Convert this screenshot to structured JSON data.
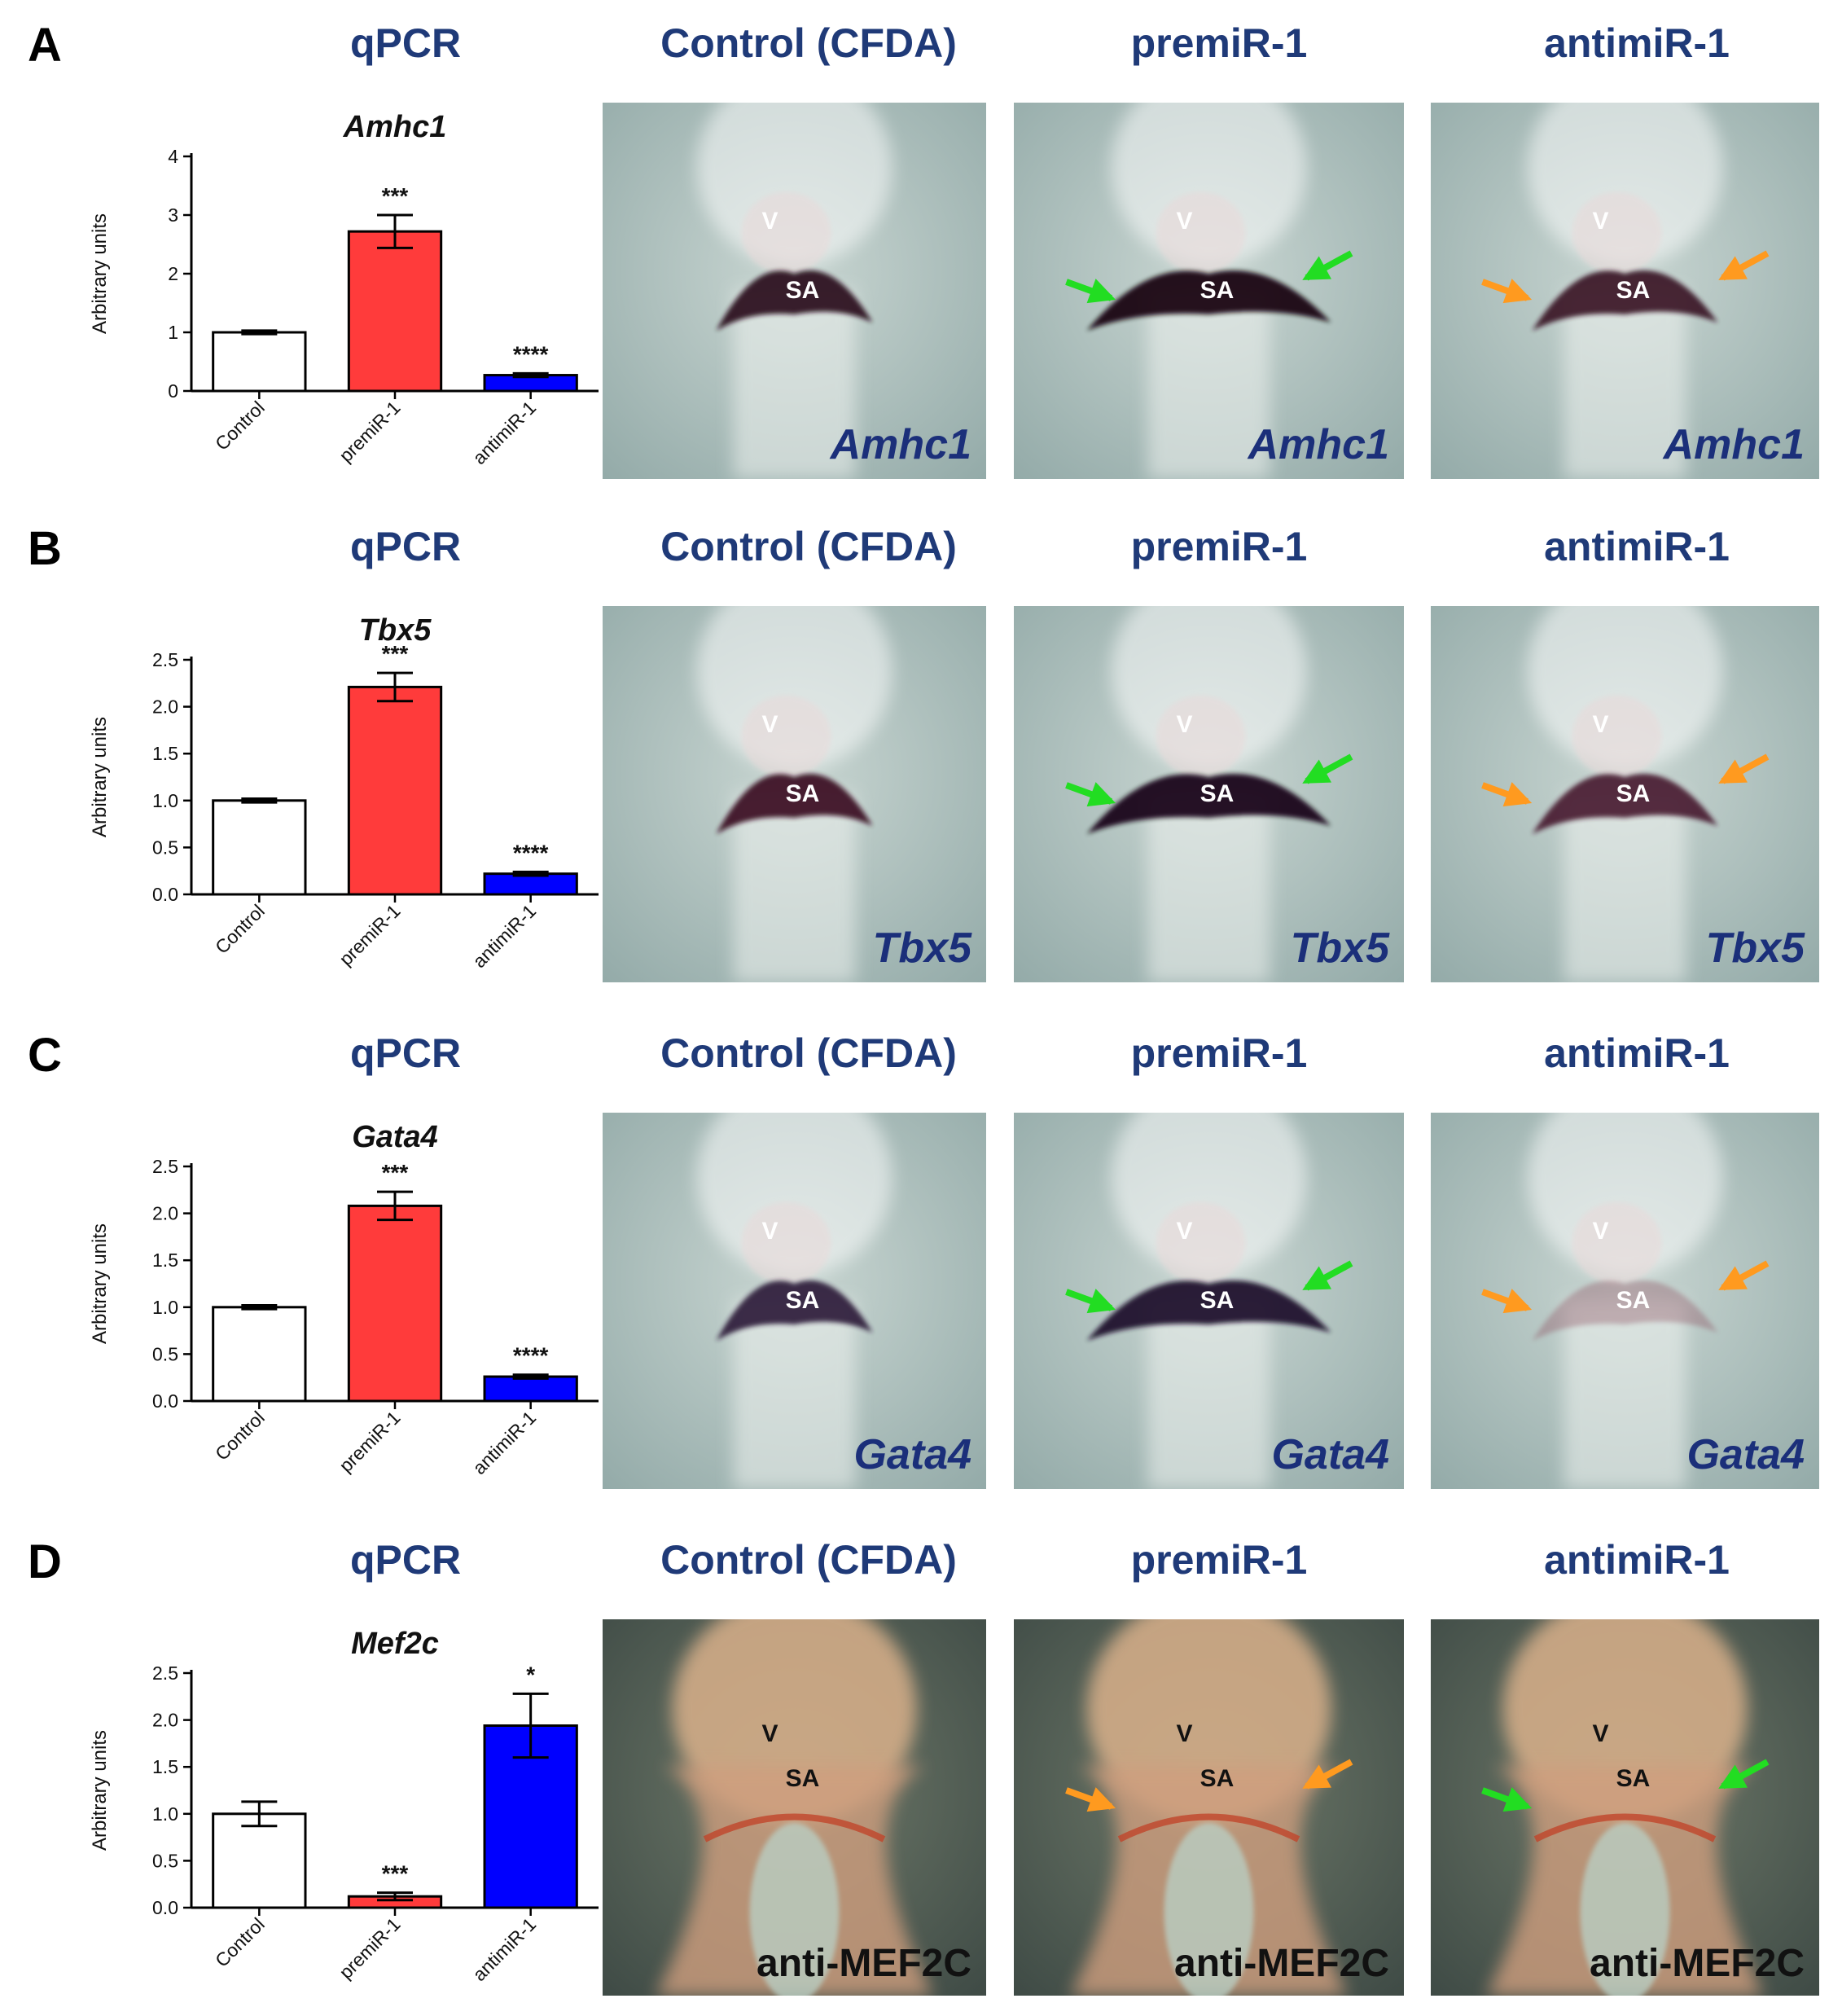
{
  "colors": {
    "title": "#1f3a78",
    "control_bar": "#ffffff",
    "premir_bar": "#ff3b3b",
    "antimir_bar": "#0000ff",
    "green_arrow": "#22dd22",
    "orange_arrow": "#ff9a1f"
  },
  "column_titles": {
    "qpcr": "qPCR",
    "control": "Control (CFDA)",
    "premir": "premiR-1",
    "antimir": "antimiR-1"
  },
  "panels": [
    {
      "letter": "A",
      "photo_labels": [
        "Amhc1",
        "Amhc1",
        "Amhc1"
      ],
      "tissue_labels": {
        "ventricle": "V",
        "sinoatrial": "SA"
      },
      "arrows": [
        "none",
        "green",
        "orange"
      ]
    },
    {
      "letter": "B",
      "photo_labels": [
        "Tbx5",
        "Tbx5",
        "Tbx5"
      ],
      "tissue_labels": {
        "ventricle": "V",
        "sinoatrial": "SA"
      },
      "arrows": [
        "none",
        "green",
        "orange"
      ]
    },
    {
      "letter": "C",
      "photo_labels": [
        "Gata4",
        "Gata4",
        "Gata4"
      ],
      "tissue_labels": {
        "ventricle": "V",
        "sinoatrial": "SA"
      },
      "arrows": [
        "none",
        "green",
        "orange"
      ]
    },
    {
      "letter": "D",
      "photo_labels": [
        "anti-MEF2C",
        "anti-MEF2C",
        "anti-MEF2C"
      ],
      "tissue_labels": {
        "ventricle": "V",
        "sinoatrial": "SA"
      },
      "arrows": [
        "none",
        "orange",
        "green"
      ]
    }
  ],
  "chart_data": [
    {
      "type": "bar",
      "title": "Amhc1",
      "ylabel": "Arbitrary units",
      "categories": [
        "Control",
        "premiR-1",
        "antimiR-1"
      ],
      "values": [
        1.0,
        2.72,
        0.27
      ],
      "errors": [
        0.03,
        0.28,
        0.03
      ],
      "significance": [
        "",
        "***",
        "****"
      ],
      "ylim": [
        0,
        4
      ],
      "yticks": [
        "0",
        "1",
        "2",
        "3",
        "4"
      ]
    },
    {
      "type": "bar",
      "title": "Tbx5",
      "ylabel": "Arbitrary units",
      "categories": [
        "Control",
        "premiR-1",
        "antimiR-1"
      ],
      "values": [
        1.0,
        2.21,
        0.22
      ],
      "errors": [
        0.02,
        0.15,
        0.02
      ],
      "significance": [
        "",
        "***",
        "****"
      ],
      "ylim": [
        0,
        2.5
      ],
      "yticks": [
        "0.0",
        "0.5",
        "1.0",
        "1.5",
        "2.0",
        "2.5"
      ]
    },
    {
      "type": "bar",
      "title": "Gata4",
      "ylabel": "Arbitrary units",
      "categories": [
        "Control",
        "premiR-1",
        "antimiR-1"
      ],
      "values": [
        1.0,
        2.08,
        0.26
      ],
      "errors": [
        0.02,
        0.15,
        0.02
      ],
      "significance": [
        "",
        "***",
        "****"
      ],
      "ylim": [
        0,
        2.5
      ],
      "yticks": [
        "0.0",
        "0.5",
        "1.0",
        "1.5",
        "2.0",
        "2.5"
      ]
    },
    {
      "type": "bar",
      "title": "Mef2c",
      "ylabel": "Arbitrary units",
      "categories": [
        "Control",
        "premiR-1",
        "antimiR-1"
      ],
      "values": [
        1.0,
        0.12,
        1.94
      ],
      "errors": [
        0.13,
        0.04,
        0.34
      ],
      "significance": [
        "",
        "***",
        "*"
      ],
      "ylim": [
        0,
        2.5
      ],
      "yticks": [
        "0.0",
        "0.5",
        "1.0",
        "1.5",
        "2.0",
        "2.5"
      ]
    }
  ]
}
